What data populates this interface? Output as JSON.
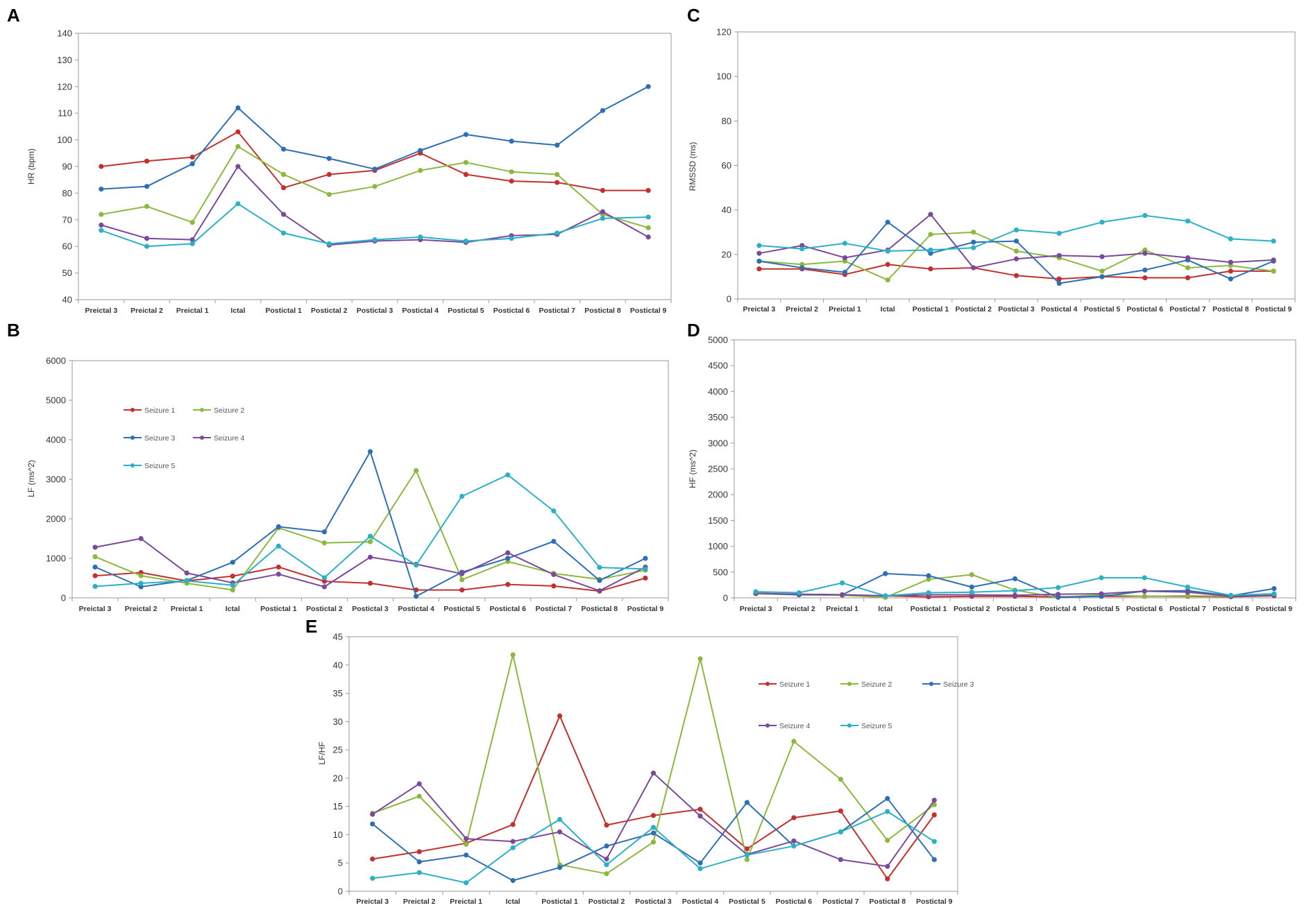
{
  "figure": {
    "series_colors": {
      "Seizure 1": "#c0312f",
      "Seizure 2": "#8db83f",
      "Seizure 3": "#2e6fb4",
      "Seizure 4": "#7a4a9a",
      "Seizure 5": "#2bb0c6"
    },
    "categories": [
      "Preictal 3",
      "Preictal 2",
      "Preictal 1",
      "Ictal",
      "Postictal 1",
      "Postictal 2",
      "Postictal 3",
      "Postictal 4",
      "Postictal 5",
      "Postictal 6",
      "Postictal 7",
      "Postictal 8",
      "Postictal 9"
    ]
  },
  "chart_data": [
    {
      "panel": "A",
      "type": "line",
      "title": "",
      "xlabel": "",
      "ylabel": "HR (bpm)",
      "ylim": [
        40,
        140
      ],
      "yticks": [
        40,
        50,
        60,
        70,
        80,
        90,
        100,
        110,
        120,
        130,
        140
      ],
      "categories": [
        "Preictal 3",
        "Preictal 2",
        "Preictal 1",
        "Ictal",
        "Postictal 1",
        "Postictal 2",
        "Postictal 3",
        "Postictal 4",
        "Postictal 5",
        "Postictal 6",
        "Postictal 7",
        "Postictal 8",
        "Postictal 9"
      ],
      "legend": null,
      "series": [
        {
          "name": "Seizure 1",
          "values": [
            90,
            92,
            93.5,
            103,
            82,
            87,
            88.5,
            95,
            87,
            84.5,
            84,
            81,
            81
          ]
        },
        {
          "name": "Seizure 2",
          "values": [
            72,
            75,
            69,
            97.5,
            87,
            79.5,
            82.5,
            88.5,
            91.5,
            88,
            87,
            72,
            67
          ]
        },
        {
          "name": "Seizure 3",
          "values": [
            81.5,
            82.5,
            91,
            112,
            96.5,
            93,
            89,
            96,
            102,
            99.5,
            98,
            111,
            120
          ]
        },
        {
          "name": "Seizure 4",
          "values": [
            68,
            63,
            62.5,
            90,
            72,
            60.5,
            62,
            62.5,
            61.5,
            64,
            64.5,
            73,
            63.5
          ]
        },
        {
          "name": "Seizure 5",
          "values": [
            66,
            60,
            61,
            76,
            65,
            61,
            62.5,
            63.5,
            62,
            63,
            65,
            70.5,
            71
          ]
        }
      ]
    },
    {
      "panel": "B",
      "type": "line",
      "title": "",
      "xlabel": "",
      "ylabel": "LF (ms^2)",
      "ylim": [
        0,
        6000
      ],
      "yticks": [
        0,
        1000,
        2000,
        3000,
        4000,
        5000,
        6000
      ],
      "categories": [
        "Preictal 3",
        "Preictal 2",
        "Preictal 1",
        "Ictal",
        "Postictal 1",
        "Postictal 2",
        "Postictal 3",
        "Postictal 4",
        "Postictal 5",
        "Postictal 6",
        "Postictal 7",
        "Postictal 8",
        "Postictal 9"
      ],
      "legend": {
        "placement": "top-left",
        "columns": 2,
        "entries": [
          "Seizure 1",
          "Seizure 2",
          "Seizure 3",
          "Seizure 4",
          "Seizure 5"
        ]
      },
      "series": [
        {
          "name": "Seizure 1",
          "values": [
            560,
            640,
            430,
            550,
            780,
            420,
            370,
            200,
            200,
            340,
            300,
            170,
            500
          ]
        },
        {
          "name": "Seizure 2",
          "values": [
            1040,
            560,
            370,
            200,
            1770,
            1390,
            1420,
            3220,
            460,
            920,
            620,
            470,
            700
          ]
        },
        {
          "name": "Seizure 3",
          "values": [
            780,
            280,
            440,
            900,
            1800,
            1670,
            3700,
            40,
            650,
            1000,
            1430,
            440,
            1000
          ]
        },
        {
          "name": "Seizure 4",
          "values": [
            1280,
            1500,
            630,
            380,
            600,
            280,
            1030,
            850,
            610,
            1140,
            590,
            180,
            780
          ]
        },
        {
          "name": "Seizure 5",
          "values": [
            290,
            370,
            430,
            320,
            1310,
            510,
            1560,
            830,
            2570,
            3110,
            2200,
            770,
            730
          ]
        }
      ]
    },
    {
      "panel": "C",
      "type": "line",
      "title": "",
      "xlabel": "",
      "ylabel": "RMSSD (ms)",
      "ylim": [
        0,
        120
      ],
      "yticks": [
        0,
        20,
        40,
        60,
        80,
        100,
        120
      ],
      "categories": [
        "Preictal 3",
        "Preictal 2",
        "Preictal 1",
        "Ictal",
        "Postictal 1",
        "Postictal 2",
        "Postictal 3",
        "Postictal 4",
        "Postictal 5",
        "Postictal 6",
        "Postictal 7",
        "Postictal 8",
        "Postictal 9"
      ],
      "legend": null,
      "series": [
        {
          "name": "Seizure 1",
          "values": [
            13.5,
            13.5,
            11,
            15.5,
            13.5,
            14,
            10.5,
            9,
            10,
            9.5,
            9.5,
            12.5,
            12.5
          ]
        },
        {
          "name": "Seizure 2",
          "values": [
            17,
            15.5,
            17,
            8.5,
            29,
            30,
            21.5,
            18.5,
            12.5,
            22,
            14,
            15,
            12.5
          ]
        },
        {
          "name": "Seizure 3",
          "values": [
            17,
            14,
            12,
            34.5,
            20.5,
            25.5,
            26,
            7,
            10,
            13,
            17.5,
            9,
            17
          ]
        },
        {
          "name": "Seizure 4",
          "values": [
            20.5,
            24,
            18.5,
            22,
            38,
            14,
            18,
            19.5,
            19,
            20.5,
            18.5,
            16.5,
            17.5
          ]
        },
        {
          "name": "Seizure 5",
          "values": [
            24,
            22.5,
            25,
            21.5,
            22,
            23,
            31,
            29.5,
            34.5,
            37.5,
            35,
            27,
            26
          ]
        }
      ]
    },
    {
      "panel": "D",
      "type": "line",
      "title": "",
      "xlabel": "",
      "ylabel": "HF (ms^2)",
      "ylim": [
        0,
        5000
      ],
      "yticks": [
        0,
        500,
        1000,
        1500,
        2000,
        2500,
        3000,
        3500,
        4000,
        4500,
        5000
      ],
      "categories": [
        "Preictal 3",
        "Preictal 2",
        "Preictal 1",
        "Ictal",
        "Postictal 1",
        "Postictal 2",
        "Postictal 3",
        "Postictal 4",
        "Postictal 5",
        "Postictal 6",
        "Postictal 7",
        "Postictal 8",
        "Postictal 9"
      ],
      "legend": null,
      "series": [
        {
          "name": "Seizure 1",
          "values": [
            80,
            70,
            60,
            40,
            20,
            30,
            30,
            20,
            30,
            30,
            30,
            20,
            40
          ]
        },
        {
          "name": "Seizure 2",
          "values": [
            80,
            60,
            50,
            10,
            360,
            450,
            150,
            10,
            60,
            30,
            40,
            30,
            50
          ]
        },
        {
          "name": "Seizure 3",
          "values": [
            90,
            60,
            60,
            470,
            430,
            210,
            370,
            10,
            30,
            130,
            140,
            40,
            180
          ]
        },
        {
          "name": "Seizure 4",
          "values": [
            90,
            70,
            60,
            40,
            60,
            60,
            50,
            70,
            80,
            130,
            110,
            30,
            50
          ]
        },
        {
          "name": "Seizure 5",
          "values": [
            120,
            100,
            290,
            40,
            100,
            110,
            140,
            200,
            390,
            390,
            210,
            50,
            80
          ]
        }
      ]
    },
    {
      "panel": "E",
      "type": "line",
      "title": "",
      "xlabel": "",
      "ylabel": "LF/HF",
      "ylim": [
        0,
        45
      ],
      "yticks": [
        0,
        5,
        10,
        15,
        20,
        25,
        30,
        35,
        40,
        45
      ],
      "categories": [
        "Preictal 3",
        "Preictal 2",
        "Preictal 1",
        "Ictal",
        "Postictal 1",
        "Postictal 2",
        "Postictal 3",
        "Postictal 4",
        "Postictal 5",
        "Postictal 6",
        "Postictal 7",
        "Postictal 8",
        "Postictal 9"
      ],
      "legend": {
        "placement": "top-right",
        "columns": 3,
        "entries": [
          "Seizure 1",
          "Seizure 2",
          "Seizure 3",
          "Seizure 4",
          "Seizure 5"
        ]
      },
      "series": [
        {
          "name": "Seizure 1",
          "values": [
            5.7,
            7,
            8.5,
            11.8,
            31,
            11.7,
            13.4,
            14.5,
            7.5,
            13,
            14.2,
            2.2,
            13.5
          ]
        },
        {
          "name": "Seizure 2",
          "values": [
            13.8,
            16.8,
            8.3,
            41.8,
            4.7,
            3.1,
            8.7,
            41.1,
            5.6,
            26.5,
            19.8,
            9,
            15.3
          ]
        },
        {
          "name": "Seizure 3",
          "values": [
            11.9,
            5.2,
            6.4,
            1.9,
            4.2,
            8,
            10.3,
            5,
            15.7,
            8,
            10.5,
            16.4,
            5.6
          ]
        },
        {
          "name": "Seizure 4",
          "values": [
            13.6,
            19,
            9.3,
            8.8,
            10.5,
            5.7,
            20.9,
            13.3,
            6.5,
            8.9,
            5.6,
            4.4,
            16.1
          ]
        },
        {
          "name": "Seizure 5",
          "values": [
            2.3,
            3.3,
            1.5,
            7.7,
            12.7,
            4.7,
            11.3,
            4,
            6.4,
            8,
            10.5,
            14.1,
            8.8
          ]
        }
      ]
    }
  ]
}
